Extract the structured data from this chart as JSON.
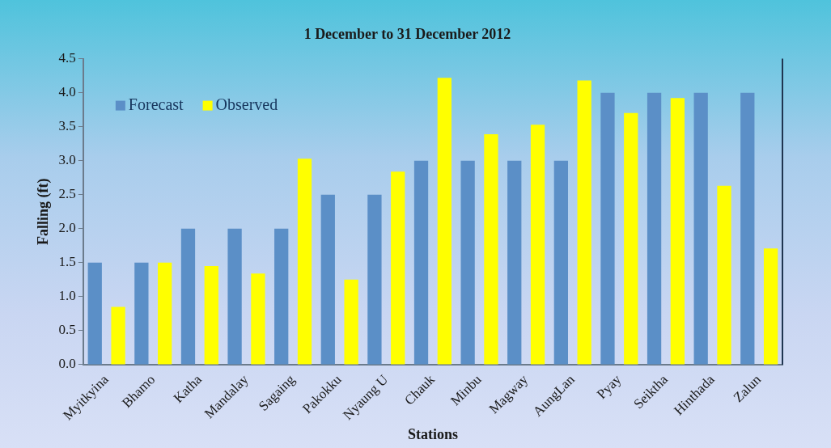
{
  "chart_data": {
    "type": "bar",
    "title": "1 December to 31 December 2012",
    "xlabel": "Stations",
    "ylabel": "Falling (ft)",
    "categories": [
      "Myitkyina",
      "Bhamo",
      "Katha",
      "Mandalay",
      "Sagaing",
      "Pakokku",
      "Nyaung U",
      "Chauk",
      "Minbu",
      "Magway",
      "AungLan",
      "Pyay",
      "Seiktha",
      "Hinthada",
      "Zalun"
    ],
    "series": [
      {
        "name": "Forecast",
        "color": "#5b8fc7",
        "values": [
          1.5,
          1.5,
          2.0,
          2.0,
          2.0,
          2.5,
          2.5,
          3.0,
          3.0,
          3.0,
          3.0,
          4.0,
          4.0,
          4.0,
          4.0
        ]
      },
      {
        "name": "Observed",
        "color": "#ffff00",
        "values": [
          0.85,
          1.5,
          1.45,
          1.34,
          3.03,
          1.25,
          2.84,
          4.22,
          3.39,
          3.53,
          4.18,
          3.7,
          3.92,
          2.63,
          1.71
        ]
      }
    ],
    "ylim": [
      0,
      4.5
    ],
    "yticks": [
      {
        "value": 0,
        "label": "0.0"
      },
      0.5,
      {
        "value": 1,
        "label": "1.0"
      },
      1.5,
      {
        "value": 2,
        "label": "2.0"
      },
      2.5,
      {
        "value": 3,
        "label": "3.0"
      },
      3.5,
      {
        "value": 4,
        "label": "4.0"
      },
      4.5
    ],
    "grid": false,
    "legend": "top left"
  }
}
